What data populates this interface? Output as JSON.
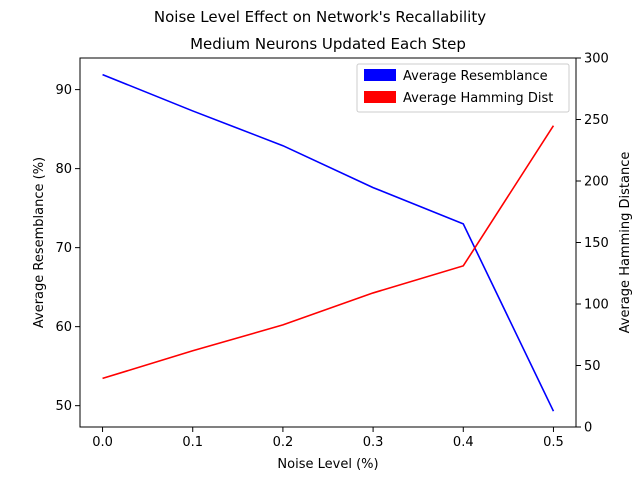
{
  "chart_data": {
    "type": "line",
    "suptitle": "Noise Level Effect on Network's Recallability",
    "title": "Medium Neurons Updated Each Step",
    "xlabel": "Noise Level (%)",
    "ylabel_left": "Average Resemblance (%)",
    "ylabel_right": "Average Hamming Distance",
    "x": [
      0.0,
      0.1,
      0.2,
      0.3,
      0.4,
      0.5
    ],
    "xlim": [
      -0.025,
      0.525
    ],
    "xticks": [
      0.0,
      0.1,
      0.2,
      0.3,
      0.4,
      0.5
    ],
    "xtick_labels": [
      "0.0",
      "0.1",
      "0.2",
      "0.3",
      "0.4",
      "0.5"
    ],
    "ylim_left": [
      47.3,
      94.0
    ],
    "yticks_left": [
      50,
      60,
      70,
      80,
      90
    ],
    "ylim_right": [
      0,
      300
    ],
    "yticks_right": [
      0,
      50,
      100,
      150,
      200,
      250,
      300
    ],
    "series": [
      {
        "name": "Average Resemblance",
        "axis": "left",
        "color": "#0000ff",
        "values": [
          91.9,
          87.3,
          82.9,
          77.6,
          73.0,
          49.3
        ]
      },
      {
        "name": "Average Hamming Dist",
        "axis": "right",
        "color": "#ff0000",
        "values": [
          39.5,
          62.0,
          83.0,
          109.0,
          131.0,
          245.0
        ]
      }
    ],
    "legend_position": "top-right",
    "grid": false
  }
}
